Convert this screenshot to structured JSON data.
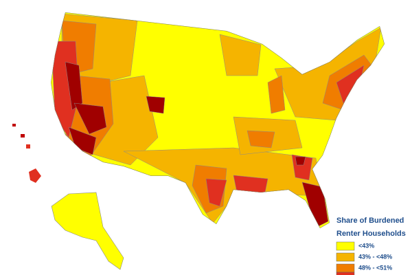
{
  "legend": {
    "title": [
      "Share of Burdened",
      "Renter Households"
    ],
    "items": [
      {
        "label": "<43%",
        "color": "#ffff00"
      },
      {
        "label": "43% - <48%",
        "color": "#f5b400"
      },
      {
        "label": "48% - <51%",
        "color": "#f07d00"
      }
    ]
  }
}
